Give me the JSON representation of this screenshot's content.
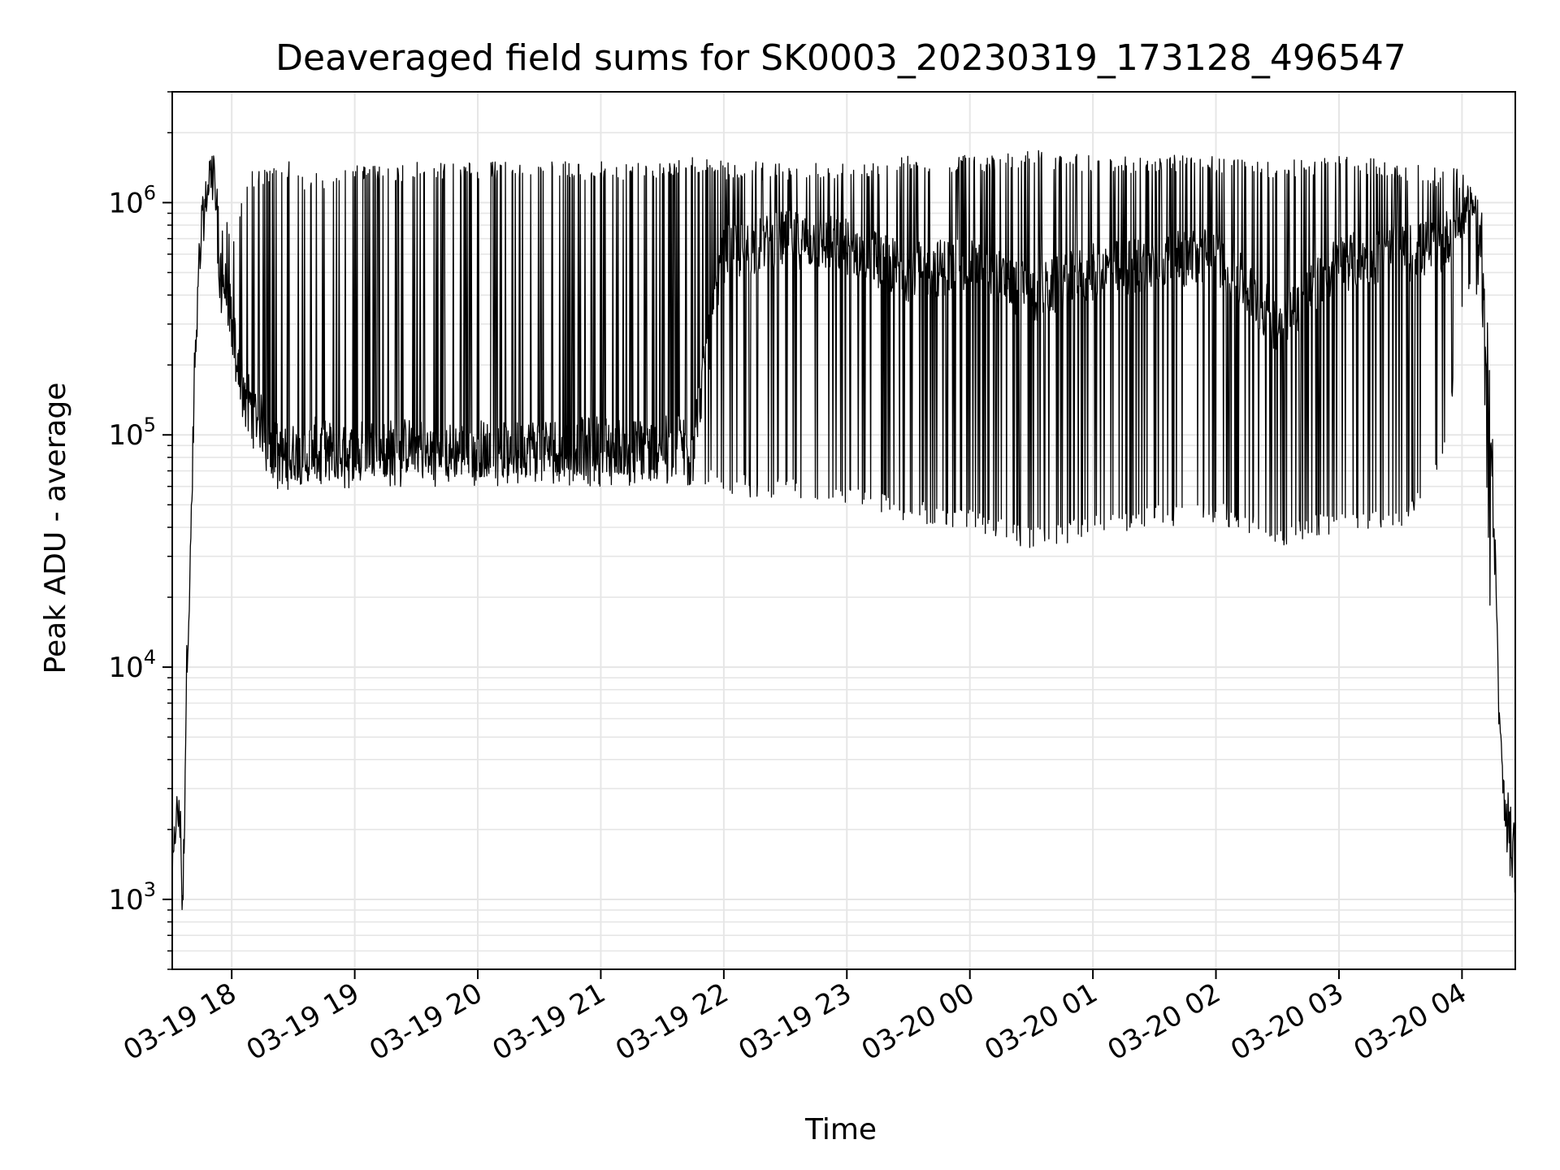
{
  "chart_data": {
    "type": "line",
    "title": "Deaveraged field sums for SK0003_20230319_173128_496547",
    "xlabel": "Time",
    "ylabel": "Peak ADU - average",
    "y_scale": "log",
    "ylim": [
      500,
      3000000
    ],
    "xlim": [
      "2023-03-19 17:31",
      "2023-03-20 04:26"
    ],
    "grid": true,
    "line_color": "#000000",
    "x_ticks": [
      {
        "value": "2023-03-19 18:00",
        "label": "03-19 18"
      },
      {
        "value": "2023-03-19 19:00",
        "label": "03-19 19"
      },
      {
        "value": "2023-03-19 20:00",
        "label": "03-19 20"
      },
      {
        "value": "2023-03-19 21:00",
        "label": "03-19 21"
      },
      {
        "value": "2023-03-19 22:00",
        "label": "03-19 22"
      },
      {
        "value": "2023-03-19 23:00",
        "label": "03-19 23"
      },
      {
        "value": "2023-03-20 00:00",
        "label": "03-20 00"
      },
      {
        "value": "2023-03-20 01:00",
        "label": "03-20 01"
      },
      {
        "value": "2023-03-20 02:00",
        "label": "03-20 02"
      },
      {
        "value": "2023-03-20 03:00",
        "label": "03-20 03"
      },
      {
        "value": "2023-03-20 04:00",
        "label": "03-20 04"
      }
    ],
    "y_ticks": [
      {
        "value": 1000,
        "base": "10",
        "exp": "3"
      },
      {
        "value": 10000,
        "base": "10",
        "exp": "4"
      },
      {
        "value": 100000,
        "base": "10",
        "exp": "5"
      },
      {
        "value": 1000000,
        "base": "10",
        "exp": "6"
      }
    ],
    "series": [
      {
        "x": [
          "2023-03-19 17:31",
          "2023-03-19 17:33",
          "2023-03-19 17:35",
          "2023-03-19 17:36",
          "2023-03-19 17:37",
          "2023-03-19 17:38",
          "2023-03-19 17:40",
          "2023-03-19 17:42",
          "2023-03-19 17:45",
          "2023-03-19 17:48",
          "2023-03-19 17:50",
          "2023-03-19 17:52",
          "2023-03-19 17:54",
          "2023-03-19 17:56",
          "2023-03-19 17:58",
          "2023-03-19 18:00",
          "2023-03-19 18:03",
          "2023-03-19 18:06",
          "2023-03-19 18:10",
          "2023-03-19 18:15",
          "2023-03-19 18:20",
          "2023-03-19 18:25",
          "2023-03-19 18:30",
          "2023-03-19 18:35",
          "2023-03-19 18:40",
          "2023-03-19 18:45",
          "2023-03-19 18:50",
          "2023-03-19 18:55",
          "2023-03-19 19:00",
          "2023-03-19 19:05",
          "2023-03-19 19:15",
          "2023-03-19 19:30",
          "2023-03-19 19:45",
          "2023-03-19 20:00",
          "2023-03-19 20:15",
          "2023-03-19 20:30",
          "2023-03-19 20:45",
          "2023-03-19 21:00",
          "2023-03-19 21:15",
          "2023-03-19 21:30",
          "2023-03-19 21:45",
          "2023-03-19 22:00",
          "2023-03-19 22:30",
          "2023-03-19 23:00",
          "2023-03-19 23:30",
          "2023-03-20 00:00",
          "2023-03-20 00:30",
          "2023-03-20 01:00",
          "2023-03-20 01:30",
          "2023-03-20 02:00",
          "2023-03-20 02:30",
          "2023-03-20 03:00",
          "2023-03-20 03:30",
          "2023-03-20 03:50",
          "2023-03-20 04:00",
          "2023-03-20 04:05",
          "2023-03-20 04:10",
          "2023-03-20 04:15",
          "2023-03-20 04:18",
          "2023-03-20 04:20",
          "2023-03-20 04:22",
          "2023-03-20 04:24",
          "2023-03-20 04:26"
        ],
        "y": [
          1200,
          2500,
          2200,
          800,
          2500,
          10000,
          30000,
          200000,
          700000,
          1100000,
          1300000,
          1200000,
          600000,
          450000,
          400000,
          300000,
          200000,
          160000,
          130000,
          110000,
          90000,
          80000,
          85000,
          80000,
          90000,
          88000,
          85000,
          82000,
          85000,
          90000,
          88000,
          90000,
          85000,
          88000,
          85000,
          90000,
          88000,
          92000,
          88000,
          90000,
          95000,
          600000,
          700000,
          650000,
          500000,
          550000,
          400000,
          500000,
          550000,
          600000,
          300000,
          550000,
          600000,
          650000,
          900000,
          1000000,
          600000,
          50000,
          6000,
          3000,
          2500,
          2000,
          1500
        ],
        "max": [
          1500,
          2800,
          2600,
          1200,
          3000,
          12000,
          40000,
          300000,
          1000000,
          1300000,
          2000000,
          1400000,
          900000,
          800000,
          900000,
          800000,
          700000,
          1400000,
          1400000,
          1400000,
          1400000,
          1500000,
          1500000,
          1300000,
          1400000,
          1300000,
          1400000,
          1400000,
          1500000,
          1500000,
          1400000,
          1500000,
          1500000,
          1500000,
          1500000,
          1500000,
          1500000,
          1500000,
          1500000,
          1500000,
          1600000,
          1500000,
          1500000,
          1500000,
          1600000,
          1600000,
          1700000,
          1600000,
          1600000,
          1600000,
          1500000,
          1600000,
          1500000,
          1400000,
          1500000,
          1100000,
          1000000,
          100000,
          8000,
          3300,
          3000,
          2500,
          2000
        ],
        "min": [
          1000,
          2000,
          1800,
          750,
          1800,
          8000,
          25000,
          150000,
          500000,
          1000000,
          1100000,
          900000,
          350000,
          300000,
          250000,
          200000,
          150000,
          110000,
          90000,
          70000,
          60000,
          55000,
          60000,
          58000,
          60000,
          60000,
          58000,
          58000,
          60000,
          60000,
          58000,
          60000,
          60000,
          60000,
          60000,
          60000,
          60000,
          60000,
          58000,
          58000,
          60000,
          55000,
          52000,
          48000,
          42000,
          38000,
          32000,
          36000,
          40000,
          42000,
          33000,
          38000,
          40000,
          65000,
          300000,
          500000,
          300000,
          6000,
          2500,
          2000,
          1500,
          1100,
          1000
        ]
      }
    ]
  }
}
